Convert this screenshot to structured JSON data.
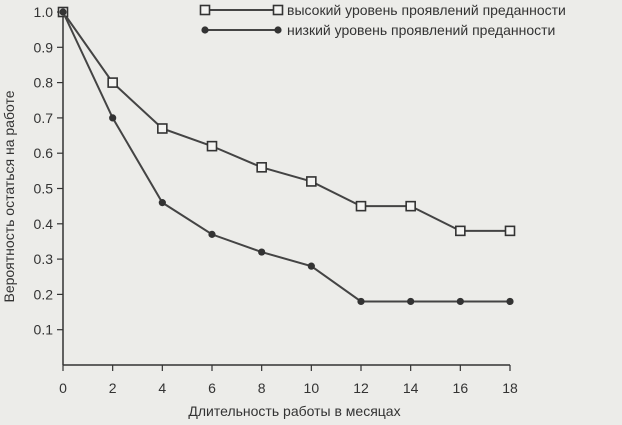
{
  "chart_data": {
    "type": "line",
    "xlabel": "Длительность работы в месяцах",
    "ylabel": "Вероятность остаться на работе",
    "xlim": [
      0,
      18
    ],
    "ylim": [
      0,
      1.0
    ],
    "x_ticks": [
      "0",
      "2",
      "4",
      "6",
      "8",
      "10",
      "12",
      "14",
      "16",
      "18"
    ],
    "y_ticks": [
      "0.1",
      "0.2",
      "0.3",
      "0.4",
      "0.5",
      "0.6",
      "0.7",
      "0.8",
      "0.9",
      "1.0"
    ],
    "legend_position": "top-right",
    "series": [
      {
        "name": "высокий уровень проявлений преданности",
        "marker": "square",
        "x": [
          0,
          2,
          4,
          6,
          8,
          10,
          12,
          14,
          16,
          18
        ],
        "y": [
          1.0,
          0.8,
          0.67,
          0.62,
          0.56,
          0.52,
          0.45,
          0.45,
          0.38,
          0.38
        ]
      },
      {
        "name": "низкий уровень проявлений преданности",
        "marker": "circle",
        "x": [
          0,
          2,
          4,
          6,
          8,
          10,
          12,
          14,
          16,
          18
        ],
        "y": [
          1.0,
          0.7,
          0.46,
          0.37,
          0.32,
          0.28,
          0.18,
          0.18,
          0.18,
          0.18
        ]
      }
    ]
  }
}
